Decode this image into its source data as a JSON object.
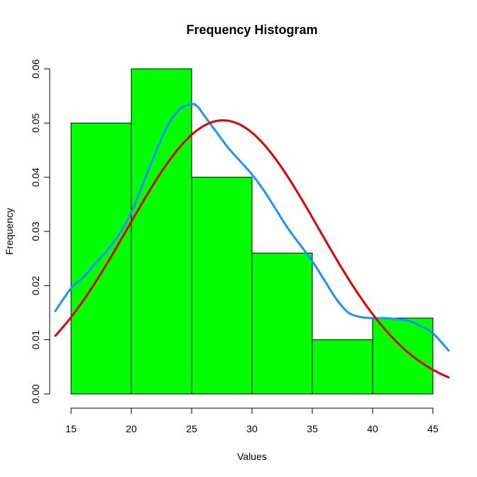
{
  "chart_data": {
    "type": "bar",
    "title": "Frequency Histogram",
    "xlabel": "Values",
    "ylabel": "Frequency",
    "xlim": [
      13.7,
      46.3
    ],
    "ylim": [
      0,
      0.06
    ],
    "x_ticks": [
      15,
      20,
      25,
      30,
      35,
      40,
      45
    ],
    "y_ticks": [
      0,
      0.01,
      0.02,
      0.03,
      0.04,
      0.05,
      0.06
    ],
    "x_tick_labels": [
      "15",
      "20",
      "25",
      "30",
      "35",
      "40",
      "45"
    ],
    "y_tick_labels": [
      "0.00",
      "0.01",
      "0.02",
      "0.03",
      "0.04",
      "0.05",
      "0.06"
    ],
    "bins": [
      {
        "from": 15,
        "to": 20,
        "value": 0.05
      },
      {
        "from": 20,
        "to": 25,
        "value": 0.06
      },
      {
        "from": 25,
        "to": 30,
        "value": 0.04
      },
      {
        "from": 30,
        "to": 35,
        "value": 0.026
      },
      {
        "from": 35,
        "to": 40,
        "value": 0.01
      },
      {
        "from": 40,
        "to": 45,
        "value": 0.014
      }
    ],
    "bar_color": "#00ff00",
    "bar_border_color": "#000000",
    "curves": [
      {
        "kind": "density",
        "color": "#1e90ff",
        "x": [
          13.7,
          15,
          16,
          17,
          18,
          19,
          20,
          21,
          22,
          23,
          24,
          25,
          25.5,
          26,
          27,
          28,
          29,
          30,
          31,
          32,
          33,
          34,
          35,
          36,
          37,
          38,
          39,
          40,
          41,
          42,
          43,
          44,
          45,
          46.3
        ],
        "y": [
          0.0153,
          0.0195,
          0.0215,
          0.024,
          0.0265,
          0.0295,
          0.0335,
          0.039,
          0.0445,
          0.0495,
          0.0525,
          0.0535,
          0.053,
          0.0515,
          0.0485,
          0.0455,
          0.043,
          0.0405,
          0.0375,
          0.034,
          0.0305,
          0.0275,
          0.0245,
          0.021,
          0.0175,
          0.015,
          0.0142,
          0.014,
          0.014,
          0.0138,
          0.0135,
          0.0125,
          0.0112,
          0.008
        ]
      },
      {
        "kind": "normal",
        "color": "#e00000",
        "mean": 27.6,
        "sd": 7.9
      }
    ]
  }
}
